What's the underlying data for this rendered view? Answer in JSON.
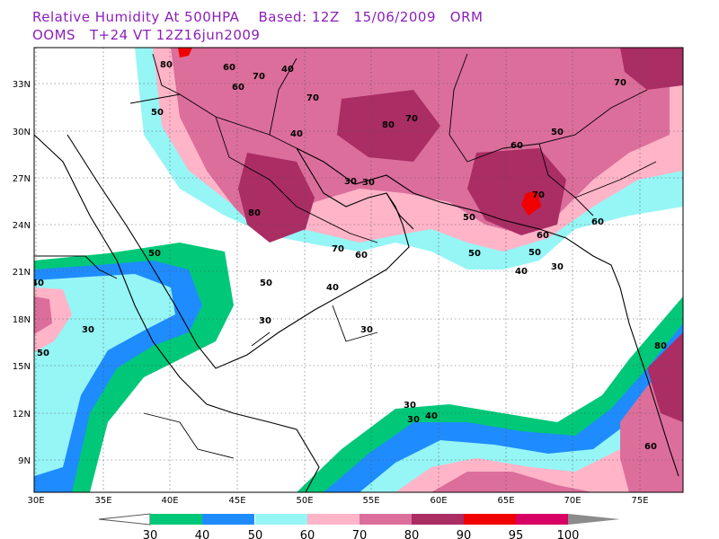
{
  "title_line1": "Relative Humidity At 500HPA    Based: 12Z   15/06/2009   ORM",
  "title_line2": "OOMS   T+24 VT 12Z16jun2009",
  "map": {
    "lon_labels": [
      "30E",
      "35E",
      "40E",
      "45E",
      "50E",
      "55E",
      "60E",
      "65E",
      "70E",
      "75E"
    ],
    "lat_labels": [
      "33N",
      "30N",
      "27N",
      "24N",
      "21N",
      "18N",
      "15N",
      "12N",
      "9N"
    ],
    "contour_labels": [
      "80",
      "60",
      "70",
      "60",
      "50",
      "40",
      "70",
      "80",
      "70",
      "60",
      "50",
      "70",
      "50",
      "30",
      "30",
      "40",
      "50",
      "30",
      "80",
      "70",
      "60",
      "50",
      "40",
      "30",
      "40",
      "50",
      "30",
      "80",
      "60",
      "70",
      "60",
      "50",
      "40",
      "30",
      "50",
      "30",
      "40",
      "30",
      "60"
    ]
  },
  "legend": {
    "labels": [
      "30",
      "40",
      "50",
      "60",
      "70",
      "80",
      "90",
      "95",
      "100"
    ],
    "colors": [
      "#00c878",
      "#1e8cff",
      "#96f5f5",
      "#ffb4c8",
      "#dc6e9b",
      "#aa2d64",
      "#f00000",
      "#d70064",
      "#8c8c8c"
    ]
  }
}
